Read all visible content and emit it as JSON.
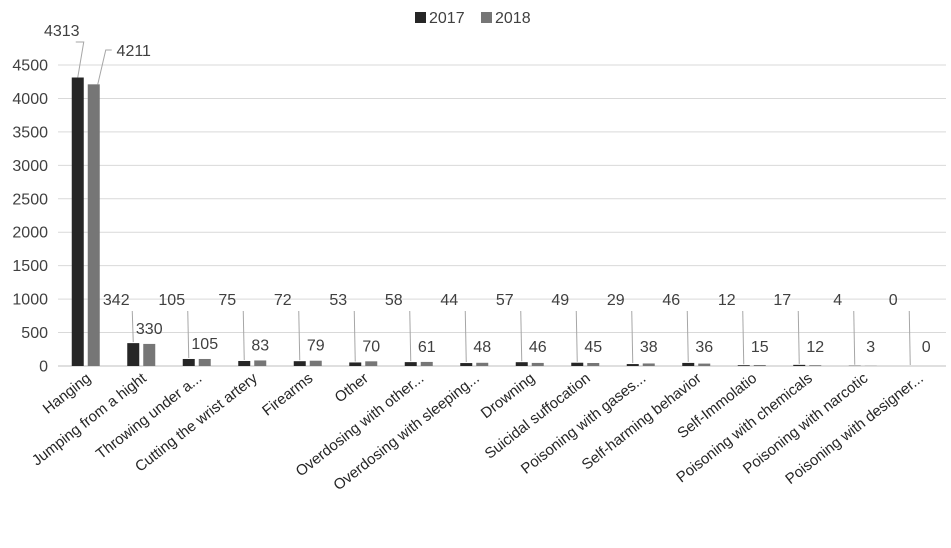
{
  "chart_data": {
    "type": "bar",
    "categories": [
      "Hanging",
      "Jumping from a hight",
      "Throwing under a...",
      "Cutting the wrist artery",
      "Firearms",
      "Other",
      "Overdosing with other...",
      "Overdosing with sleeping...",
      "Drowning",
      "Suicidal suffocation",
      "Poisoning with gases...",
      "Self-harming behavior",
      "Self-Immolatio",
      "Poisoning with chemicals",
      "Poisoning with narcotic",
      "Poisoning with designer..."
    ],
    "series": [
      {
        "name": "2017",
        "color": "#262626",
        "values": [
          4313,
          342,
          105,
          75,
          72,
          53,
          58,
          44,
          57,
          49,
          29,
          46,
          12,
          17,
          4,
          0
        ]
      },
      {
        "name": "2018",
        "color": "#767676",
        "values": [
          4211,
          330,
          105,
          83,
          79,
          70,
          61,
          48,
          46,
          45,
          38,
          36,
          15,
          12,
          3,
          0
        ]
      }
    ],
    "ylim": [
      0,
      4500
    ],
    "yticks": [
      0,
      500,
      1000,
      1500,
      2000,
      2500,
      3000,
      3500,
      4000,
      4500
    ],
    "grid": true,
    "legend_position": "top-center",
    "title": "",
    "xlabel": "",
    "ylabel": ""
  }
}
